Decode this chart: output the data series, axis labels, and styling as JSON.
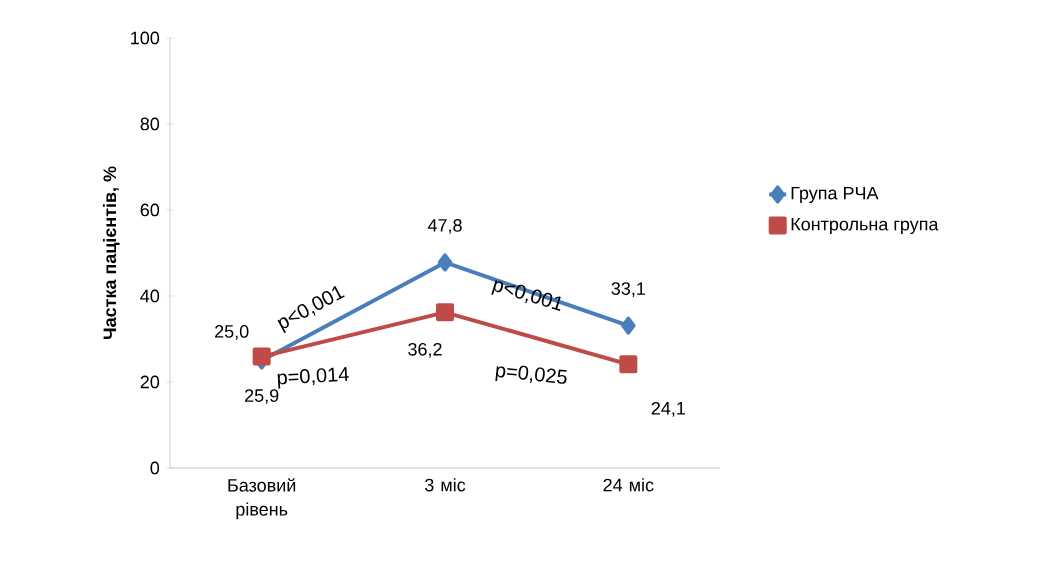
{
  "chart_data": {
    "type": "line",
    "ylabel": "Частка пацієнтів, %",
    "categories": [
      "Базовий рівень",
      "3 міс",
      "24 міс"
    ],
    "series": [
      {
        "name": "Група РЧА",
        "color": "#4a7ebb",
        "marker": "diamond",
        "values": [
          25.0,
          47.8,
          33.1
        ],
        "value_labels": [
          "25,0",
          "47,8",
          "33,1"
        ]
      },
      {
        "name": "Контрольна група",
        "color": "#be4b48",
        "marker": "square",
        "values": [
          25.9,
          36.2,
          24.1
        ],
        "value_labels": [
          "25,9",
          "36,2",
          "24,1"
        ]
      }
    ],
    "ylim": [
      0,
      100
    ],
    "yticks": [
      0,
      20,
      40,
      60,
      80,
      100
    ],
    "grid": false,
    "legend": "right",
    "line_style": "solid",
    "annotations": [
      "p<0,001",
      "p<0,001",
      "p=0,014",
      "p=0,025"
    ]
  }
}
